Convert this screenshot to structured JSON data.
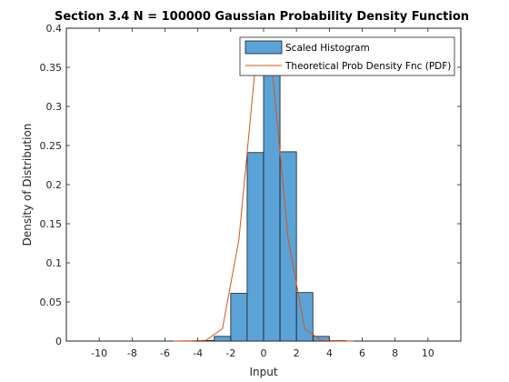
{
  "chart_data": {
    "type": "bar",
    "title": "Section 3.4 N = 100000 Gaussian Probability Density Function",
    "xlabel": "Input",
    "ylabel": "Density of Distribution",
    "xlim": [
      -12,
      12
    ],
    "ylim": [
      0,
      0.4
    ],
    "xticks": [
      -10,
      -8,
      -6,
      -4,
      -2,
      0,
      2,
      4,
      6,
      8,
      10
    ],
    "yticks": [
      0,
      0.05,
      0.1,
      0.15,
      0.2,
      0.25,
      0.3,
      0.35,
      0.4
    ],
    "xtick_labels": [
      "-10",
      "-8",
      "-6",
      "-4",
      "-2",
      "0",
      "2",
      "4",
      "6",
      "8",
      "10"
    ],
    "ytick_labels": [
      "0",
      "0.05",
      "0.1",
      "0.15",
      "0.2",
      "0.25",
      "0.3",
      "0.35",
      "0.4"
    ],
    "grid": false,
    "legend_position": "top-right",
    "series": [
      {
        "name": "Scaled Histogram",
        "type": "histogram",
        "color": "#5ba3d6",
        "bin_edges": [
          -5,
          -4,
          -3,
          -2,
          -1,
          0,
          1,
          2,
          3,
          4,
          5
        ],
        "values": [
          0.0002,
          0.0006,
          0.006,
          0.061,
          0.241,
          0.384,
          0.242,
          0.062,
          0.006,
          0.0006
        ]
      },
      {
        "name": "Theoretical Prob Density Fnc (PDF)",
        "type": "line",
        "color": "#d95319",
        "x": [
          -5.5,
          -4.5,
          -3.5,
          -2.5,
          -1.5,
          -0.5,
          0.5,
          1.5,
          2.5,
          3.5,
          4.5,
          5.5
        ],
        "values": [
          0.0001,
          0.0002,
          0.001,
          0.016,
          0.13,
          0.352,
          0.352,
          0.13,
          0.016,
          0.001,
          0.0002,
          0.0001
        ]
      }
    ]
  }
}
